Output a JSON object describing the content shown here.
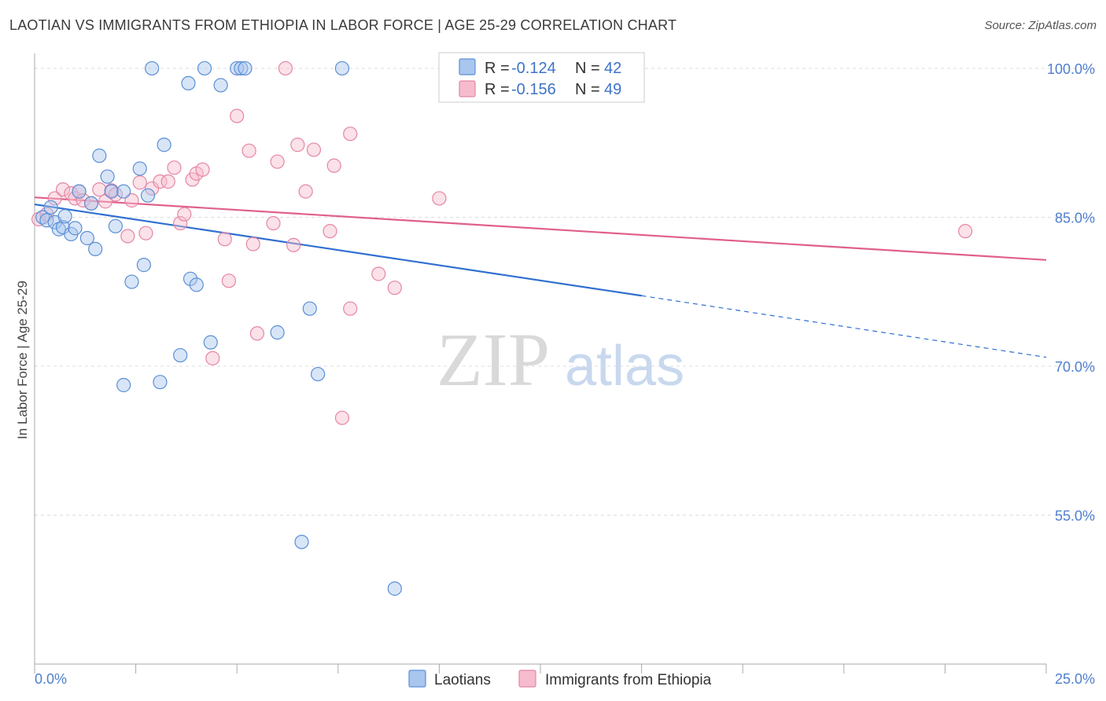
{
  "title": "LAOTIAN VS IMMIGRANTS FROM ETHIOPIA IN LABOR FORCE | AGE 25-29 CORRELATION CHART",
  "source": "Source: ZipAtlas.com",
  "watermark": {
    "zip": "ZIP",
    "atlas": "atlas"
  },
  "colors": {
    "laotian_fill": "#a9c6ee",
    "laotian_stroke": "#5b8fd6",
    "laotian_line": "#2f6fd0",
    "ethiopia_fill": "#f6bccd",
    "ethiopia_stroke": "#e486a5",
    "ethiopia_line": "#e0608a",
    "grid": "#dddddd",
    "tick_label": "#4f7fcf"
  },
  "legend": {
    "r_label": "R =",
    "n_label": "N =",
    "entries": [
      {
        "r": "-0.124",
        "n": "42"
      },
      {
        "r": "-0.156",
        "n": "49"
      }
    ]
  },
  "chart_data": {
    "type": "scatter",
    "title": "LAOTIAN VS IMMIGRANTS FROM ETHIOPIA IN LABOR FORCE | AGE 25-29 CORRELATION CHART",
    "xlabel": "",
    "ylabel": "In Labor Force | Age 25-29",
    "xlim": [
      0,
      25
    ],
    "ylim": [
      40,
      101.5
    ],
    "x_tick_labels": [
      "0.0%",
      "25.0%"
    ],
    "y_ticks": [
      55,
      70,
      85,
      100
    ],
    "y_tick_labels": [
      "55.0%",
      "70.0%",
      "85.0%",
      "100.0%"
    ],
    "grid": "horizontal dashed",
    "legend_position": "top-center",
    "series": [
      {
        "name": "Laotians",
        "points": [
          [
            0.2,
            85.0
          ],
          [
            0.3,
            84.7
          ],
          [
            0.5,
            84.5
          ],
          [
            0.6,
            83.8
          ],
          [
            0.7,
            84.0
          ],
          [
            0.75,
            85.1
          ],
          [
            0.9,
            83.3
          ],
          [
            1.0,
            83.9
          ],
          [
            1.1,
            87.6
          ],
          [
            1.3,
            82.9
          ],
          [
            1.4,
            86.4
          ],
          [
            1.5,
            81.8
          ],
          [
            1.6,
            91.2
          ],
          [
            1.8,
            89.1
          ],
          [
            1.9,
            87.6
          ],
          [
            2.0,
            84.1
          ],
          [
            2.2,
            87.6
          ],
          [
            2.2,
            68.1
          ],
          [
            2.4,
            78.5
          ],
          [
            2.6,
            89.9
          ],
          [
            2.7,
            80.2
          ],
          [
            2.8,
            87.2
          ],
          [
            2.9,
            100.0
          ],
          [
            3.1,
            68.4
          ],
          [
            3.2,
            92.3
          ],
          [
            3.6,
            71.1
          ],
          [
            3.8,
            98.5
          ],
          [
            3.85,
            78.8
          ],
          [
            4.0,
            78.2
          ],
          [
            4.2,
            100.0
          ],
          [
            4.35,
            72.4
          ],
          [
            4.6,
            98.3
          ],
          [
            5.0,
            100.0
          ],
          [
            5.1,
            100.0
          ],
          [
            5.2,
            100.0
          ],
          [
            6.0,
            73.4
          ],
          [
            6.6,
            52.3
          ],
          [
            6.8,
            75.8
          ],
          [
            7.0,
            69.2
          ],
          [
            7.6,
            100.0
          ],
          [
            8.9,
            47.6
          ],
          [
            0.4,
            86.0
          ]
        ]
      },
      {
        "name": "Immigrants from Ethiopia",
        "points": [
          [
            0.1,
            84.8
          ],
          [
            0.3,
            85.3
          ],
          [
            0.5,
            86.9
          ],
          [
            0.7,
            87.8
          ],
          [
            0.9,
            87.4
          ],
          [
            1.0,
            86.9
          ],
          [
            1.1,
            87.6
          ],
          [
            1.2,
            86.7
          ],
          [
            1.4,
            86.4
          ],
          [
            1.6,
            87.8
          ],
          [
            1.75,
            86.6
          ],
          [
            1.9,
            87.7
          ],
          [
            2.0,
            87.3
          ],
          [
            2.3,
            83.1
          ],
          [
            2.4,
            86.7
          ],
          [
            2.6,
            88.5
          ],
          [
            2.75,
            83.4
          ],
          [
            2.9,
            87.9
          ],
          [
            3.1,
            88.6
          ],
          [
            3.3,
            88.6
          ],
          [
            3.45,
            90.0
          ],
          [
            3.6,
            84.4
          ],
          [
            3.7,
            85.3
          ],
          [
            3.9,
            88.8
          ],
          [
            4.0,
            89.4
          ],
          [
            4.15,
            89.8
          ],
          [
            4.4,
            70.8
          ],
          [
            4.7,
            82.8
          ],
          [
            4.8,
            78.6
          ],
          [
            5.0,
            95.2
          ],
          [
            5.3,
            91.7
          ],
          [
            5.4,
            82.3
          ],
          [
            5.5,
            73.3
          ],
          [
            5.9,
            84.4
          ],
          [
            6.0,
            90.6
          ],
          [
            6.2,
            100.0
          ],
          [
            6.4,
            82.2
          ],
          [
            6.5,
            92.3
          ],
          [
            6.7,
            87.6
          ],
          [
            6.9,
            91.8
          ],
          [
            7.3,
            83.6
          ],
          [
            7.4,
            90.2
          ],
          [
            7.6,
            64.8
          ],
          [
            7.8,
            93.4
          ],
          [
            7.8,
            75.8
          ],
          [
            8.5,
            79.3
          ],
          [
            8.9,
            77.9
          ],
          [
            10.0,
            86.9
          ],
          [
            23.0,
            83.6
          ]
        ]
      }
    ],
    "trend_lines": [
      {
        "series": "Laotians",
        "x_start": 0,
        "y_start": 86.3,
        "x_solid_end": 15.0,
        "y_solid_end": 77.1,
        "x_end": 25,
        "y_end": 70.9
      },
      {
        "series": "Immigrants from Ethiopia",
        "x_start": 0,
        "y_start": 87.0,
        "x_end": 25,
        "y_end": 80.7
      }
    ]
  }
}
